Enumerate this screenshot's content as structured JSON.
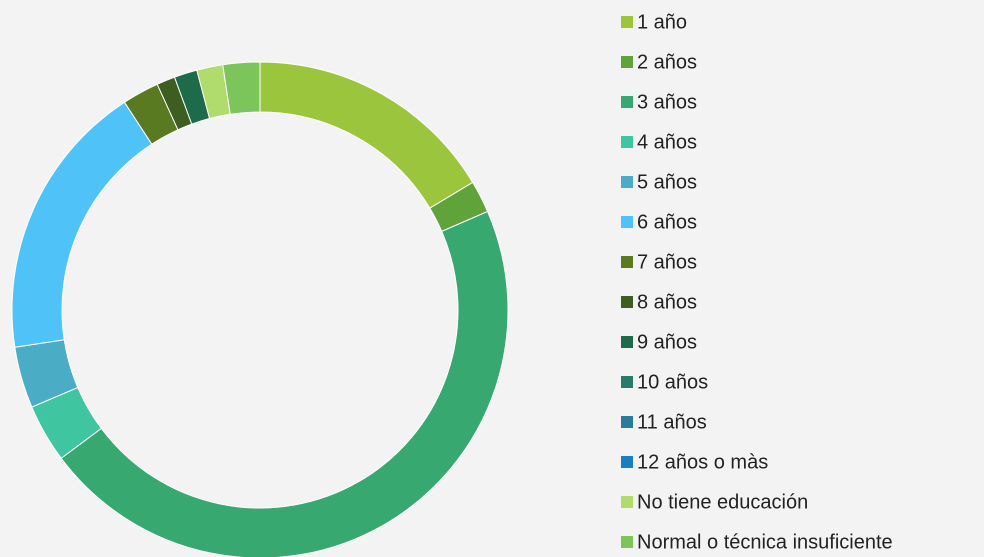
{
  "chart_data": {
    "type": "donut",
    "categories": [
      "1  año",
      "2 años",
      "3 años",
      "4 años",
      "5 años",
      "6 años",
      "7 años",
      "8 años",
      "9 años",
      "10 años",
      "11 años",
      "12 años o màs",
      "No  tiene educación",
      "Normal o técnica insuficiente"
    ],
    "values": [
      16.4,
      2.1,
      46.3,
      3.8,
      4.0,
      18.2,
      2.4,
      1.2,
      1.5,
      0,
      0,
      0,
      1.7,
      2.4
    ],
    "colors": [
      "#9bc53d",
      "#5fa33a",
      "#37a86f",
      "#3fc5a0",
      "#4bacc6",
      "#4fc3f7",
      "#5a7a22",
      "#3d5e20",
      "#1d6b4a",
      "#2a7a6a",
      "#2e7a99",
      "#1a7fc1",
      "#b0dc6e",
      "#7cc55a"
    ],
    "legend": "right"
  }
}
